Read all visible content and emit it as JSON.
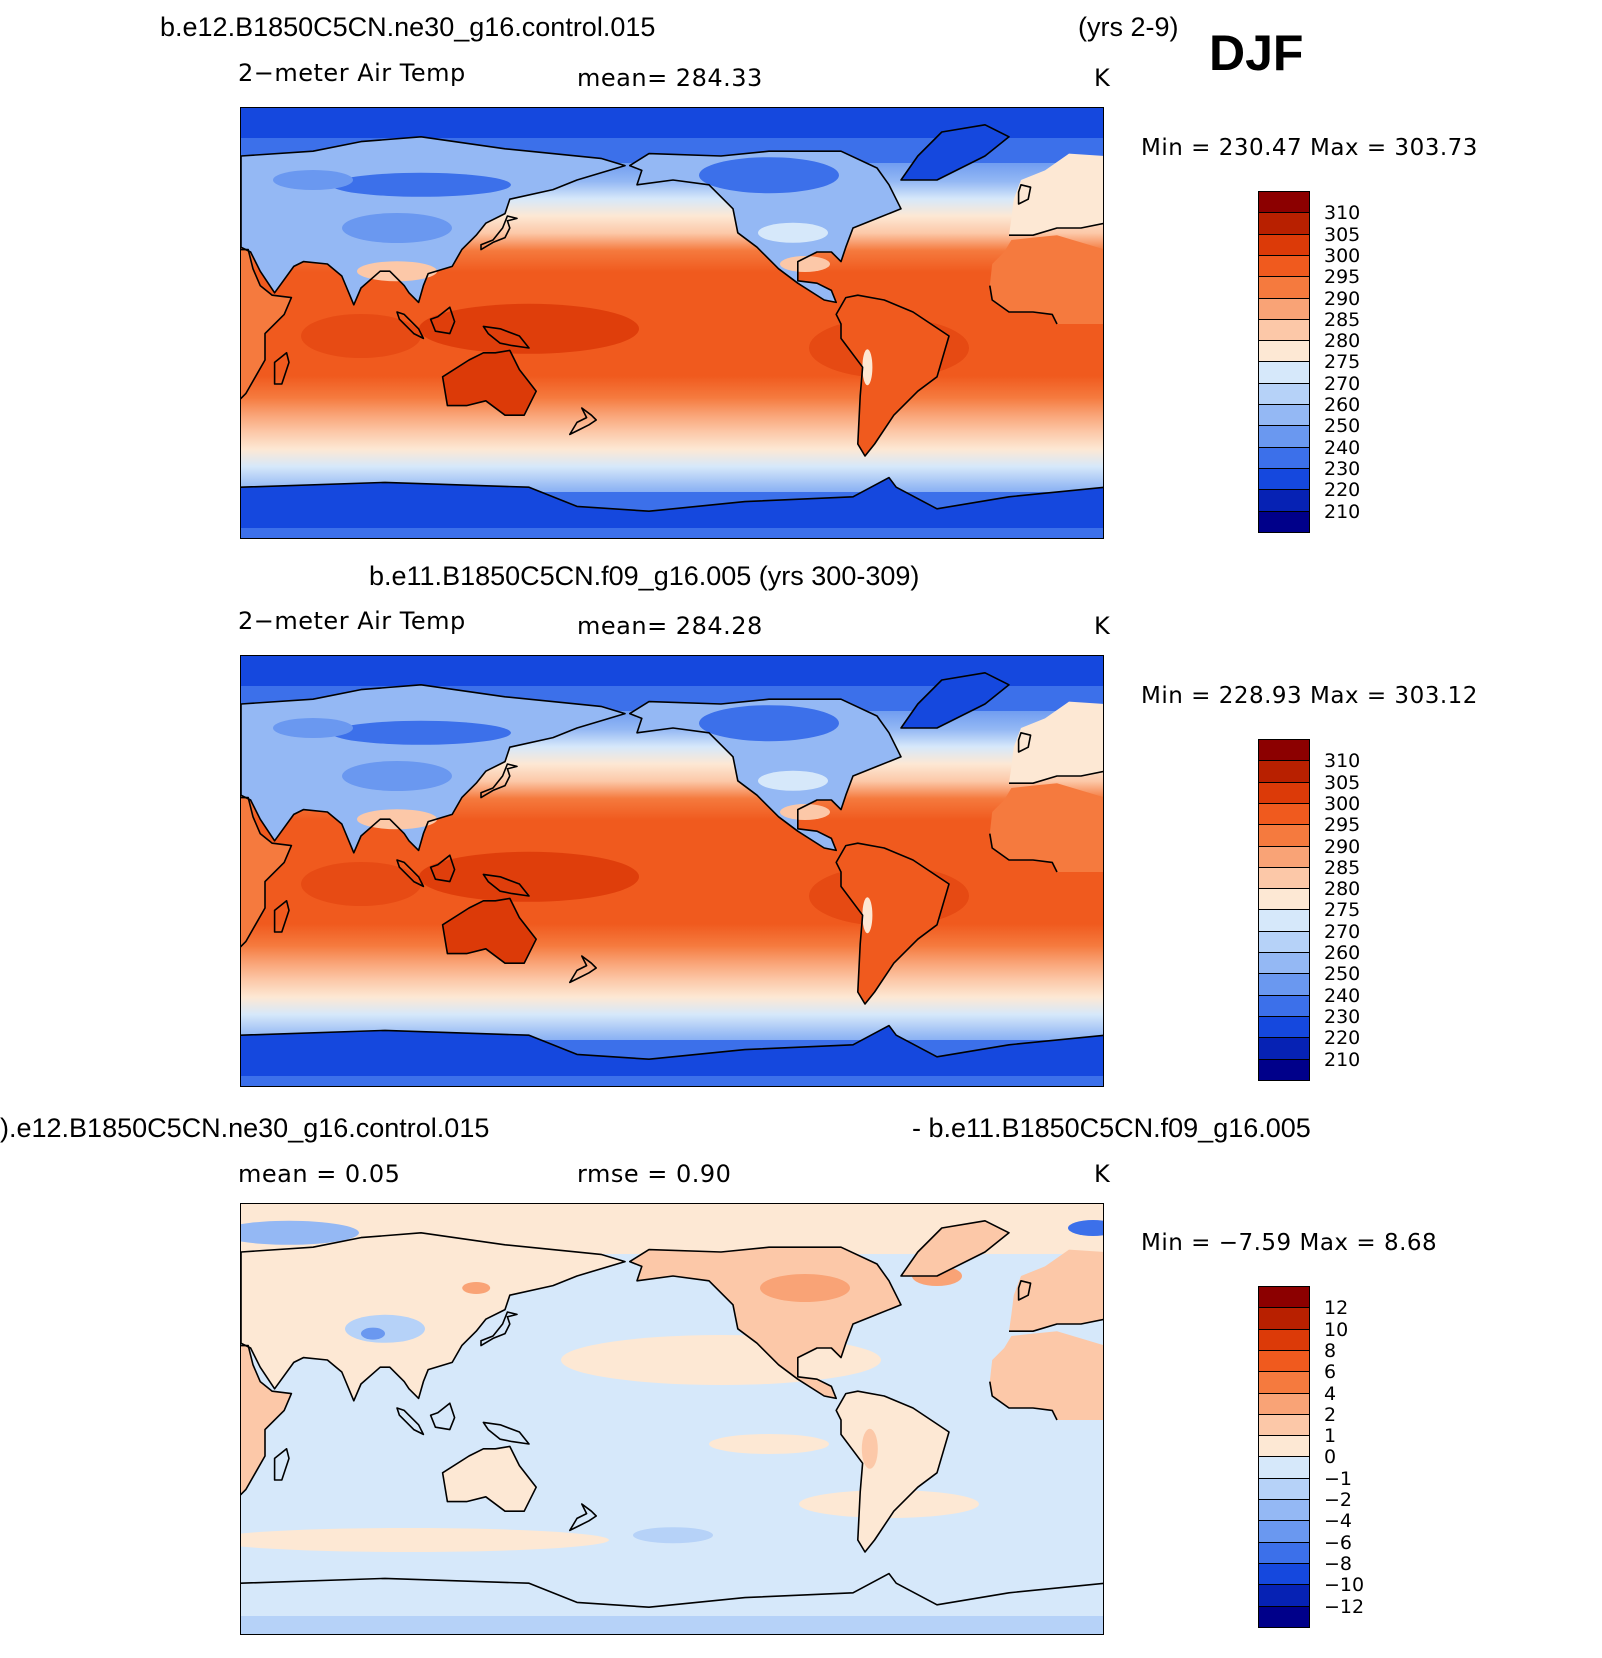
{
  "season": "DJF",
  "panels": [
    {
      "title_left": "b.e12.B1850C5CN.ne30_g16.control.015",
      "title_right": "(yrs 2-9)",
      "subtitle_left": "2−meter Air Temp",
      "subtitle_center": "mean=  284.33",
      "units": "K",
      "minmax": "Min  =  230.47  Max  =  303.73",
      "colorbar_labels": [
        "310",
        "305",
        "300",
        "295",
        "290",
        "285",
        "280",
        "275",
        "270",
        "260",
        "250",
        "240",
        "230",
        "220",
        "210"
      ],
      "kind": "abs"
    },
    {
      "title_left": "b.e11.B1850C5CN.f09_g16.005 (yrs 300-309)",
      "title_right": "",
      "subtitle_left": "2−meter Air Temp",
      "subtitle_center": "mean=  284.28",
      "units": "K",
      "minmax": "Min  =  228.93  Max  =  303.12",
      "colorbar_labels": [
        "310",
        "305",
        "300",
        "295",
        "290",
        "285",
        "280",
        "275",
        "270",
        "260",
        "250",
        "240",
        "230",
        "220",
        "210"
      ],
      "kind": "abs"
    },
    {
      "title_left": ").e12.B1850C5CN.ne30_g16.control.015",
      "title_right": "- b.e11.B1850C5CN.f09_g16.005",
      "subtitle_left": "mean  =     0.05",
      "subtitle_center": "rmse  =     0.90",
      "units": "K",
      "minmax": "Min  =    −7.59  Max  =     8.68",
      "colorbar_labels": [
        "12",
        "10",
        "8",
        "6",
        "4",
        "2",
        "1",
        "0",
        "−1",
        "−2",
        "−4",
        "−6",
        "−8",
        "−10",
        "−12"
      ],
      "kind": "diff"
    }
  ],
  "colorbar_colors": [
    "#8c0000",
    "#b82000",
    "#dc3a08",
    "#f05a1e",
    "#f57a3e",
    "#f9a376",
    "#fcc8a8",
    "#fde8d4",
    "#d6e8fa",
    "#b6d2f8",
    "#94b8f4",
    "#6a98f0",
    "#3c70ea",
    "#1548de",
    "#0622b4",
    "#00008a"
  ],
  "land_color": "#f07040"
}
